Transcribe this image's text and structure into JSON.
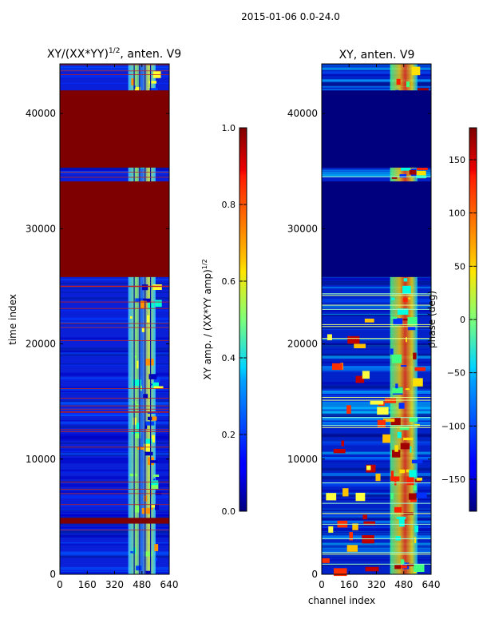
{
  "figure": {
    "suptitle": "2015-01-06 0.0-24.0"
  },
  "chart_data": [
    {
      "type": "heatmap",
      "title": "XY/(XX*YY)",
      "title_sup": "1/2",
      "title_suffix": ", anten. V9",
      "xlabel": "",
      "ylabel": "time index",
      "xlim": [
        0,
        640
      ],
      "ylim": [
        0,
        44300
      ],
      "xticks": [
        0,
        160,
        320,
        480,
        640
      ],
      "yticks": [
        0,
        10000,
        20000,
        30000,
        40000
      ],
      "colorbar": {
        "label": "XY amp. / (XX*YY amp)",
        "label_sup": "1/2",
        "range": [
          0,
          1
        ],
        "ticks": [
          "0.0",
          "0.2",
          "0.4",
          "0.6",
          "0.8",
          "1.0"
        ],
        "tick_values": [
          0,
          0.2,
          0.4,
          0.6,
          0.8,
          1.0
        ]
      },
      "saturated_time_ranges": [
        [
          4400,
          4900
        ],
        [
          25800,
          34100
        ],
        [
          35300,
          42000
        ]
      ],
      "bright_channel_range": [
        400,
        560
      ]
    },
    {
      "type": "heatmap",
      "title": "XY, anten. V9",
      "xlabel": "channel index",
      "ylabel": "",
      "xlim": [
        0,
        640
      ],
      "ylim": [
        0,
        44300
      ],
      "xticks": [
        0,
        160,
        320,
        480,
        640
      ],
      "yticks": [
        0,
        10000,
        20000,
        30000,
        40000
      ],
      "colorbar": {
        "label": "phase (deg)",
        "range": [
          -180,
          180
        ],
        "ticks": [
          "−150",
          "−100",
          "−50",
          "0",
          "50",
          "100",
          "150"
        ],
        "tick_values": [
          -150,
          -100,
          -50,
          0,
          50,
          100,
          150
        ]
      },
      "flat_time_ranges": [
        [
          25800,
          34100
        ],
        [
          35300,
          42000
        ]
      ],
      "bright_channel_range": [
        400,
        560
      ]
    }
  ]
}
